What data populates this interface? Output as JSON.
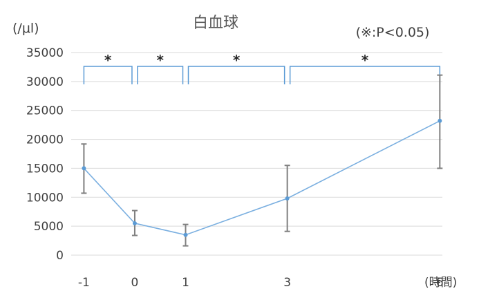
{
  "chart_data": {
    "type": "line",
    "title": "白血球",
    "unit_label": "(/μl)",
    "significance_note": "(※:P<0.05)",
    "x_axis_suffix": "(時間)",
    "x": [
      -1,
      0,
      1,
      3,
      6
    ],
    "x_tick_labels": [
      "-1",
      "0",
      "1",
      "3",
      "6"
    ],
    "ylim": [
      0,
      35000
    ],
    "y_ticks": [
      0,
      5000,
      10000,
      15000,
      20000,
      25000,
      30000,
      35000
    ],
    "y_tick_labels": [
      "0",
      "5000",
      "10000",
      "15000",
      "20000",
      "25000",
      "30000",
      "35000"
    ],
    "grid": true,
    "series": [
      {
        "values": [
          15000,
          5500,
          3500,
          9800,
          23200
        ],
        "error_low": [
          10700,
          3400,
          1600,
          4100,
          15000
        ],
        "error_high": [
          19200,
          7700,
          5300,
          15500,
          31100
        ]
      }
    ],
    "significance": [
      {
        "from": -1,
        "to": 0,
        "label": "*"
      },
      {
        "from": 0,
        "to": 1,
        "label": "*"
      },
      {
        "from": 1,
        "to": 3,
        "label": "*"
      },
      {
        "from": 3,
        "to": 6,
        "label": "*"
      }
    ],
    "colors": {
      "line": "#7aafe0",
      "marker": "#5b9bd5",
      "error_bar": "#7f7f7f",
      "bracket": "#5b9bd5",
      "grid": "#d9d9d9"
    }
  }
}
